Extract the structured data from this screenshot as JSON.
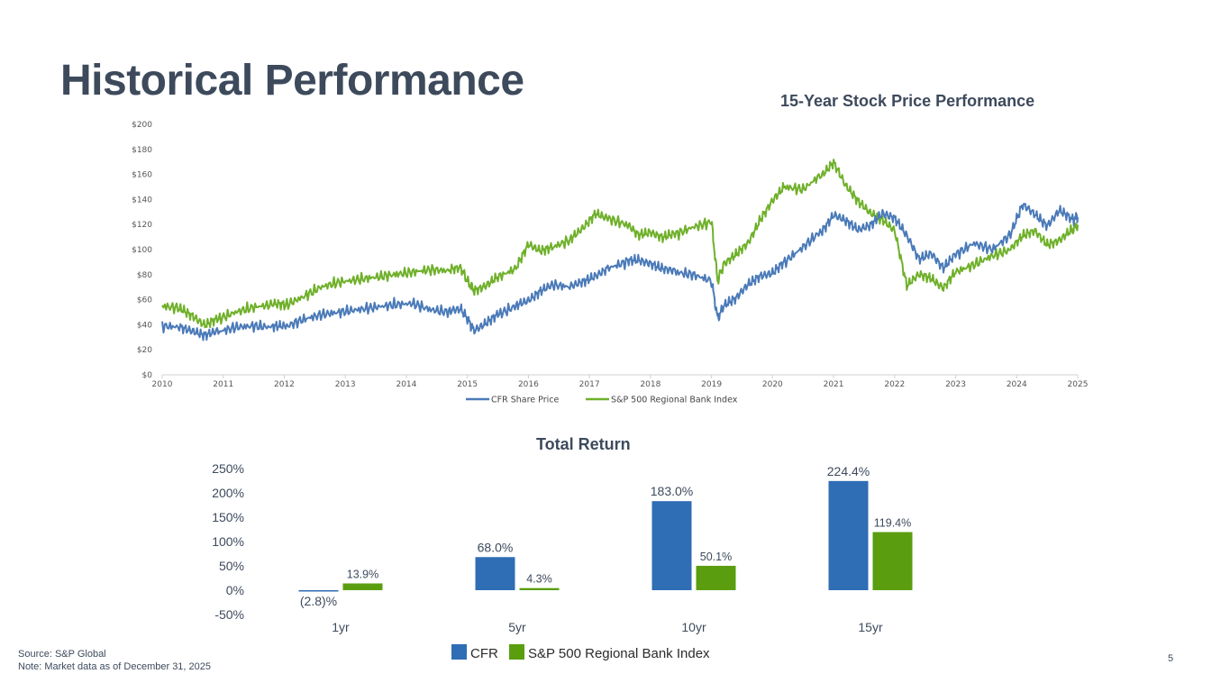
{
  "page": {
    "title": "Historical Performance",
    "source": "Source: S&P Global",
    "note": "Note: Market data as of December 31, 2025",
    "page_number": "5"
  },
  "colors": {
    "cfr": "#2f6db5",
    "cfr_line": "#4a7ab8",
    "index": "#5a9e0f",
    "index_line": "#6fb02a",
    "title": "#3d4a5c"
  },
  "chart_data": [
    {
      "type": "line",
      "title": "15-Year Stock Price Performance",
      "xlabel": "",
      "ylabel": "",
      "xlim": [
        2010,
        2025
      ],
      "ylim": [
        0,
        200
      ],
      "x_ticks": [
        "2010",
        "2011",
        "2012",
        "2013",
        "2014",
        "2015",
        "2016",
        "2017",
        "2018",
        "2019",
        "2020",
        "2021",
        "2022",
        "2023",
        "2024",
        "2025"
      ],
      "y_ticks": [
        "$0",
        "$20",
        "$40",
        "$60",
        "$80",
        "$100",
        "$120",
        "$140",
        "$160",
        "$180",
        "$200"
      ],
      "legend": "bottom-center",
      "series": [
        {
          "name": "CFR Share Price",
          "x": [
            2010.0,
            2010.3,
            2010.5,
            2010.7,
            2010.9,
            2011.2,
            2011.5,
            2011.8,
            2012.0,
            2012.3,
            2012.6,
            2012.9,
            2013.2,
            2013.5,
            2013.8,
            2014.1,
            2014.4,
            2014.7,
            2014.9,
            2015.0,
            2015.1,
            2015.3,
            2015.5,
            2015.8,
            2016.0,
            2016.2,
            2016.4,
            2016.7,
            2016.9,
            2017.1,
            2017.3,
            2017.6,
            2017.8,
            2018.0,
            2018.2,
            2018.4,
            2018.7,
            2019.0,
            2019.1,
            2019.2,
            2019.4,
            2019.6,
            2019.8,
            2020.0,
            2020.2,
            2020.5,
            2020.8,
            2021.0,
            2021.2,
            2021.4,
            2021.6,
            2021.8,
            2022.0,
            2022.2,
            2022.4,
            2022.6,
            2022.8,
            2023.0,
            2023.3,
            2023.6,
            2023.9,
            2024.1,
            2024.3,
            2024.5,
            2024.7,
            2024.9,
            2025.0
          ],
          "y": [
            39,
            38,
            36,
            32,
            34,
            38,
            39,
            38,
            38,
            44,
            48,
            50,
            52,
            54,
            56,
            57,
            52,
            50,
            52,
            45,
            36,
            42,
            48,
            55,
            60,
            68,
            72,
            70,
            75,
            80,
            85,
            90,
            92,
            90,
            85,
            82,
            80,
            75,
            45,
            55,
            60,
            72,
            80,
            82,
            90,
            102,
            115,
            128,
            122,
            115,
            120,
            130,
            125,
            110,
            92,
            98,
            86,
            96,
            105,
            100,
            112,
            135,
            128,
            120,
            132,
            124,
            126
          ]
        },
        {
          "name": "S&P 500 Regional Bank Index",
          "x": [
            2010.0,
            2010.3,
            2010.5,
            2010.7,
            2010.9,
            2011.2,
            2011.5,
            2011.8,
            2012.0,
            2012.3,
            2012.6,
            2012.9,
            2013.2,
            2013.5,
            2013.8,
            2014.1,
            2014.4,
            2014.7,
            2014.9,
            2015.0,
            2015.1,
            2015.3,
            2015.5,
            2015.8,
            2016.0,
            2016.2,
            2016.4,
            2016.7,
            2016.9,
            2017.1,
            2017.3,
            2017.6,
            2017.8,
            2018.0,
            2018.2,
            2018.4,
            2018.7,
            2019.0,
            2019.1,
            2019.2,
            2019.4,
            2019.6,
            2019.8,
            2020.0,
            2020.2,
            2020.5,
            2020.8,
            2021.0,
            2021.2,
            2021.4,
            2021.6,
            2021.8,
            2022.0,
            2022.2,
            2022.4,
            2022.6,
            2022.8,
            2023.0,
            2023.3,
            2023.6,
            2023.9,
            2024.1,
            2024.3,
            2024.5,
            2024.7,
            2024.9,
            2025.0
          ],
          "y": [
            55,
            53,
            48,
            40,
            44,
            50,
            54,
            56,
            55,
            62,
            70,
            74,
            76,
            78,
            80,
            82,
            84,
            83,
            85,
            75,
            68,
            72,
            78,
            85,
            105,
            100,
            102,
            108,
            118,
            130,
            125,
            120,
            112,
            115,
            110,
            112,
            118,
            122,
            75,
            88,
            95,
            105,
            125,
            140,
            150,
            148,
            160,
            170,
            150,
            138,
            130,
            125,
            115,
            70,
            80,
            78,
            70,
            82,
            88,
            95,
            100,
            110,
            115,
            105,
            108,
            115,
            120
          ]
        }
      ]
    },
    {
      "type": "bar",
      "title": "Total Return",
      "categories": [
        "1yr",
        "5yr",
        "10yr",
        "15yr"
      ],
      "ylim": [
        -50,
        250
      ],
      "y_ticks": [
        "-50%",
        "0%",
        "50%",
        "100%",
        "150%",
        "200%",
        "250%"
      ],
      "legend": "bottom-center",
      "series": [
        {
          "name": "CFR",
          "values": [
            -2.8,
            68.0,
            183.0,
            224.4
          ],
          "labels": [
            "(2.8)%",
            "68.0%",
            "183.0%",
            "224.4%"
          ]
        },
        {
          "name": "S&P 500 Regional Bank Index",
          "values": [
            13.9,
            4.3,
            50.1,
            119.4
          ],
          "labels": [
            "13.9%",
            "4.3%",
            "50.1%",
            "119.4%"
          ]
        }
      ]
    }
  ]
}
